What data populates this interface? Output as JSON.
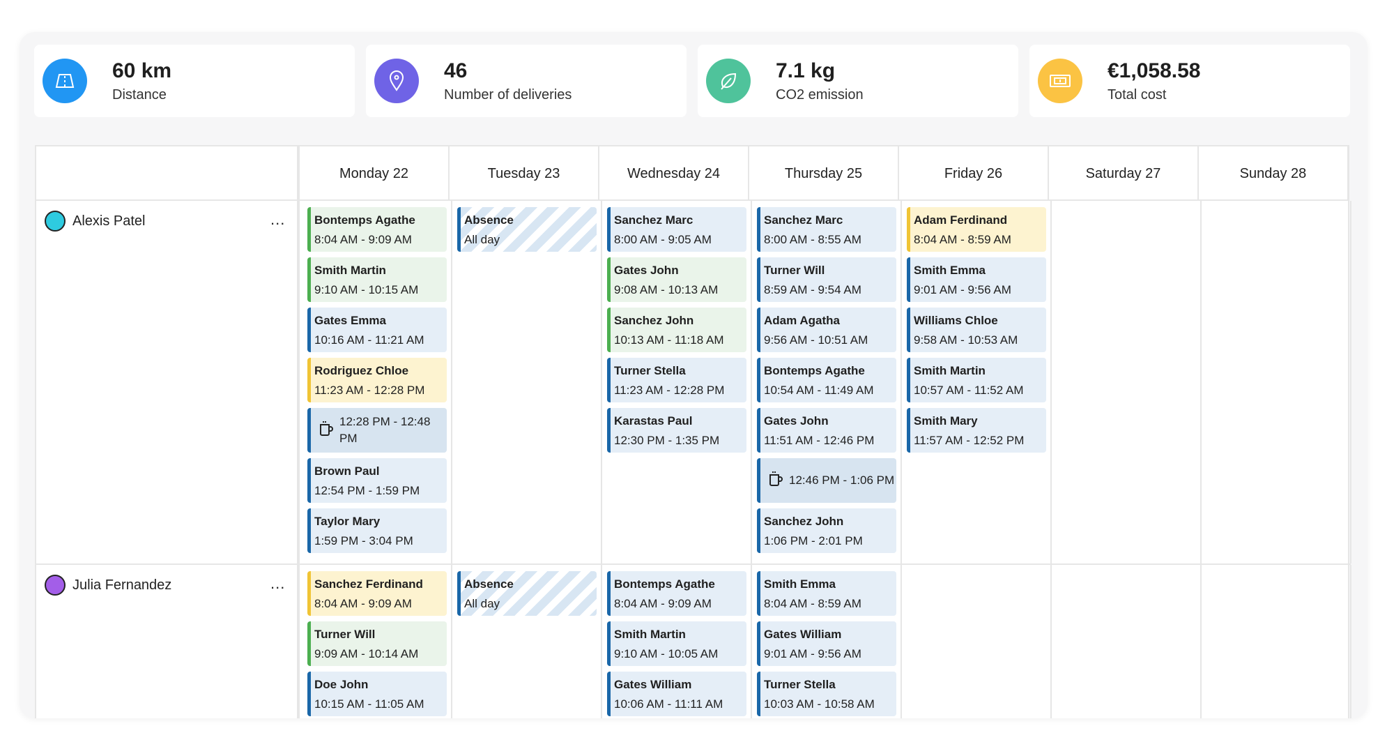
{
  "stats": [
    {
      "value": "60 km",
      "label": "Distance",
      "icon": "road-icon",
      "color": "#2196f3"
    },
    {
      "value": "46",
      "label": "Number of deliveries",
      "icon": "map-pin-icon",
      "color": "#6f63e6"
    },
    {
      "value": "7.1 kg",
      "label": "CO2 emission",
      "icon": "leaf-icon",
      "color": "#4fc39b"
    },
    {
      "value": "€1,058.58",
      "label": "Total cost",
      "icon": "banknote-icon",
      "color": "#fbc343"
    }
  ],
  "days": [
    "Monday 22",
    "Tuesday 23",
    "Wednesday 24",
    "Thursday 25",
    "Friday 26",
    "Saturday 27",
    "Sunday 28"
  ],
  "more_label": "...",
  "drivers": [
    {
      "name": "Alexis Patel",
      "color": "#2ecbe0",
      "days": [
        [
          {
            "name": "Bontemps Agathe",
            "time": "8:04 AM - 9:09 AM",
            "color": "green"
          },
          {
            "name": "Smith Martin",
            "time": "9:10 AM - 10:15 AM",
            "color": "green"
          },
          {
            "name": "Gates Emma",
            "time": "10:16 AM - 11:21 AM",
            "color": "blue"
          },
          {
            "name": "Rodriguez Chloe",
            "time": "11:23 AM - 12:28 PM",
            "color": "yellow"
          },
          {
            "type": "break",
            "time": "12:28 PM - 12:48 PM"
          },
          {
            "name": "Brown Paul",
            "time": "12:54 PM - 1:59 PM",
            "color": "blue"
          },
          {
            "name": "Taylor Mary",
            "time": "1:59 PM - 3:04 PM",
            "color": "blue"
          }
        ],
        [
          {
            "type": "absence",
            "name": "Absence",
            "time": "All day"
          }
        ],
        [
          {
            "name": "Sanchez Marc",
            "time": "8:00 AM - 9:05 AM",
            "color": "blue"
          },
          {
            "name": "Gates John",
            "time": "9:08 AM - 10:13 AM",
            "color": "green"
          },
          {
            "name": "Sanchez John",
            "time": "10:13 AM - 11:18 AM",
            "color": "green"
          },
          {
            "name": "Turner Stella",
            "time": "11:23 AM - 12:28 PM",
            "color": "blue"
          },
          {
            "name": "Karastas Paul",
            "time": "12:30 PM - 1:35 PM",
            "color": "blue"
          }
        ],
        [
          {
            "name": "Sanchez Marc",
            "time": "8:00 AM - 8:55 AM",
            "color": "blue"
          },
          {
            "name": "Turner Will",
            "time": "8:59 AM - 9:54 AM",
            "color": "blue"
          },
          {
            "name": "Adam Agatha",
            "time": "9:56 AM - 10:51 AM",
            "color": "blue"
          },
          {
            "name": "Bontemps Agathe",
            "time": "10:54 AM - 11:49 AM",
            "color": "blue"
          },
          {
            "name": "Gates John",
            "time": "11:51 AM - 12:46 PM",
            "color": "blue"
          },
          {
            "type": "break",
            "time": "12:46 PM - 1:06 PM"
          },
          {
            "name": "Sanchez John",
            "time": "1:06 PM - 2:01 PM",
            "color": "blue"
          }
        ],
        [
          {
            "name": "Adam Ferdinand",
            "time": "8:04 AM - 8:59 AM",
            "color": "yellow"
          },
          {
            "name": "Smith Emma",
            "time": "9:01 AM - 9:56 AM",
            "color": "blue"
          },
          {
            "name": "Williams Chloe",
            "time": "9:58 AM - 10:53 AM",
            "color": "blue"
          },
          {
            "name": "Smith Martin",
            "time": "10:57 AM - 11:52 AM",
            "color": "blue"
          },
          {
            "name": "Smith Mary",
            "time": "11:57 AM - 12:52 PM",
            "color": "blue"
          }
        ],
        [],
        []
      ]
    },
    {
      "name": "Julia Fernandez",
      "color": "#a35ee8",
      "days": [
        [
          {
            "name": "Sanchez Ferdinand",
            "time": "8:04 AM - 9:09 AM",
            "color": "yellow"
          },
          {
            "name": "Turner Will",
            "time": "9:09 AM - 10:14 AM",
            "color": "green"
          },
          {
            "name": "Doe John",
            "time": "10:15 AM - 11:05 AM",
            "color": "blue"
          }
        ],
        [
          {
            "type": "absence",
            "name": "Absence",
            "time": "All day"
          }
        ],
        [
          {
            "name": "Bontemps Agathe",
            "time": "8:04 AM - 9:09 AM",
            "color": "blue"
          },
          {
            "name": "Smith Martin",
            "time": "9:10 AM - 10:05 AM",
            "color": "blue"
          },
          {
            "name": "Gates William",
            "time": "10:06 AM - 11:11 AM",
            "color": "blue"
          }
        ],
        [
          {
            "name": "Smith Emma",
            "time": "8:04 AM - 8:59 AM",
            "color": "blue"
          },
          {
            "name": "Gates William",
            "time": "9:01 AM - 9:56 AM",
            "color": "blue"
          },
          {
            "name": "Turner Stella",
            "time": "10:03 AM - 10:58 AM",
            "color": "blue"
          }
        ],
        [],
        [],
        []
      ]
    }
  ]
}
